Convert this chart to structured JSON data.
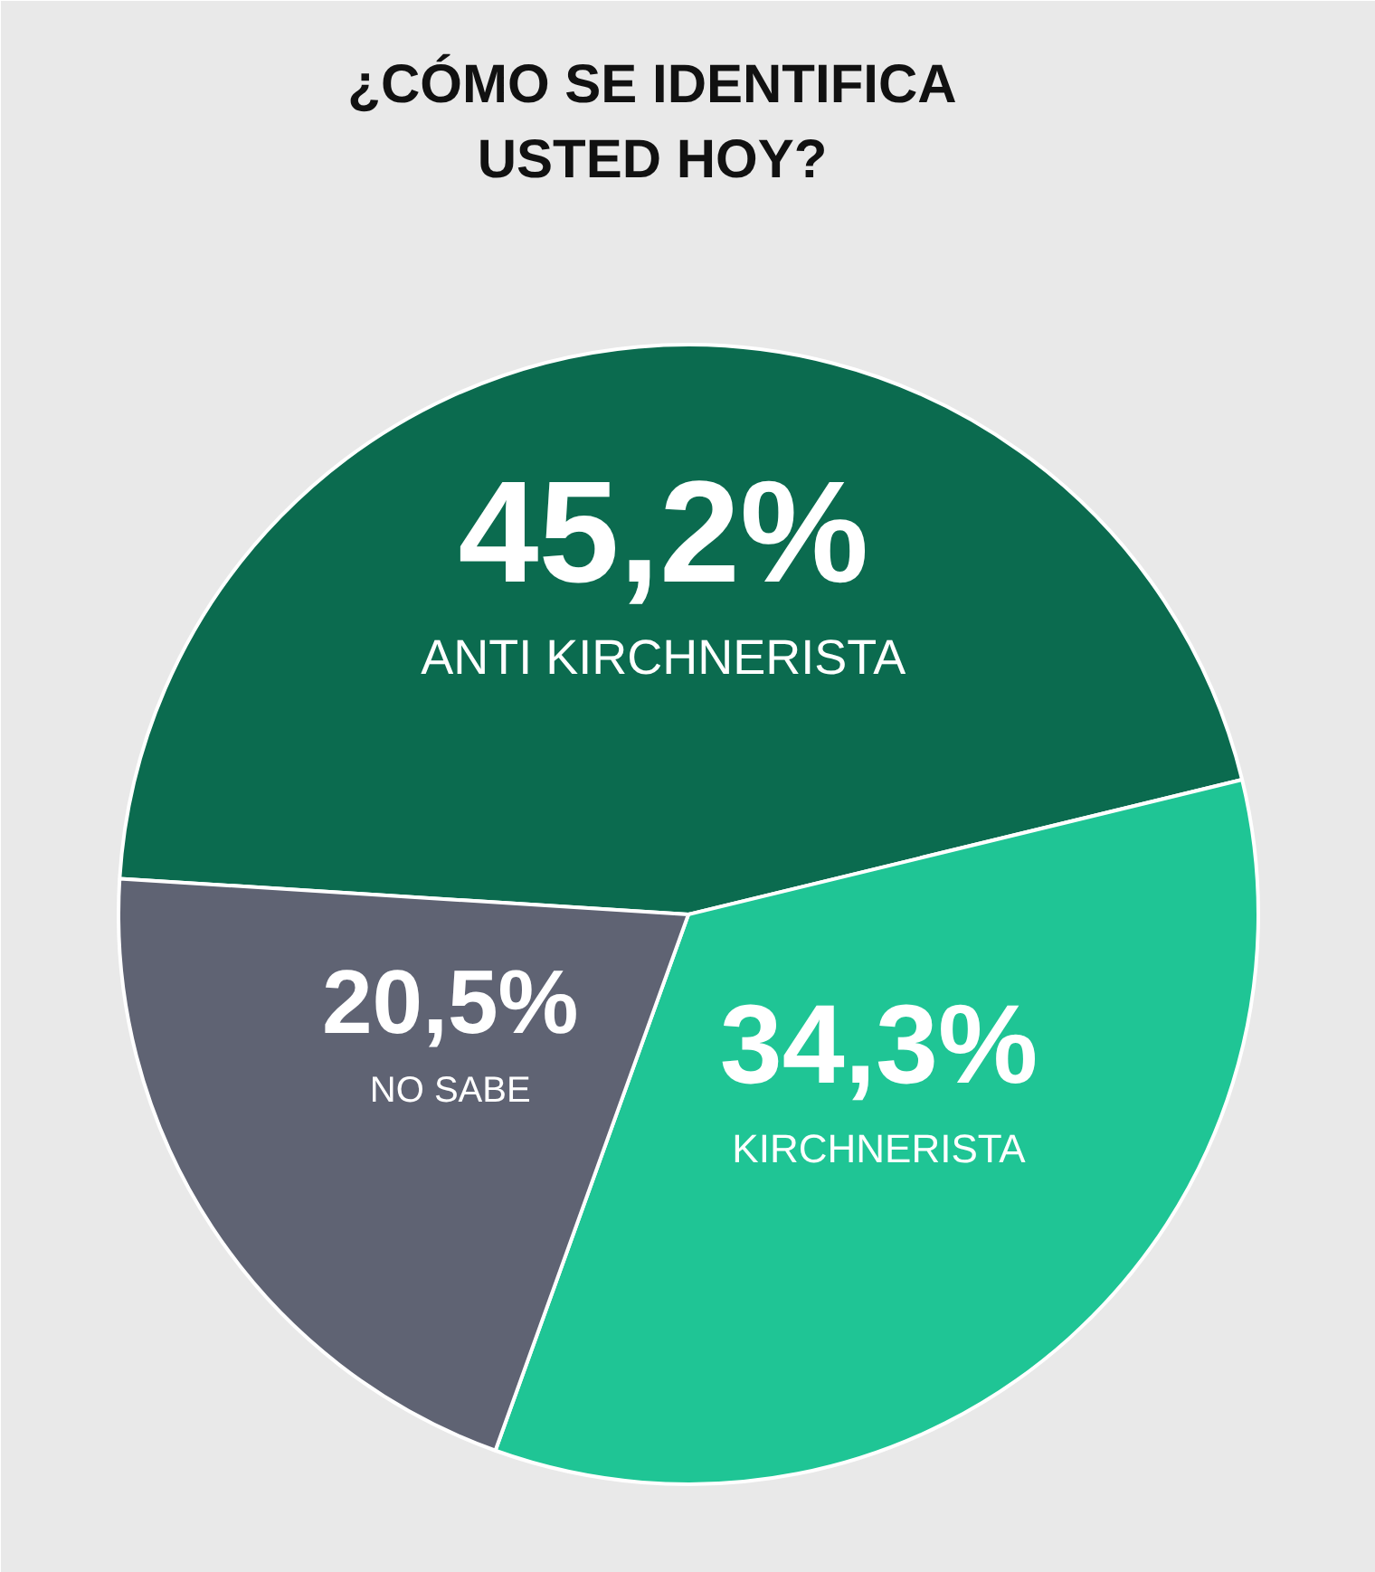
{
  "chart_data": {
    "type": "pie",
    "title": "¿CÓMO SE IDENTIFICA USTED HOY?",
    "categories": [
      "ANTI KIRCHNERISTA",
      "KIRCHNERISTA",
      "NO SABE"
    ],
    "values": [
      45.2,
      34.3,
      20.5
    ],
    "colors": [
      "#0b6b4f",
      "#1fc595",
      "#5f6373"
    ],
    "value_labels": [
      "45,2%",
      "34,3%",
      "20,5%"
    ],
    "legend": false
  }
}
